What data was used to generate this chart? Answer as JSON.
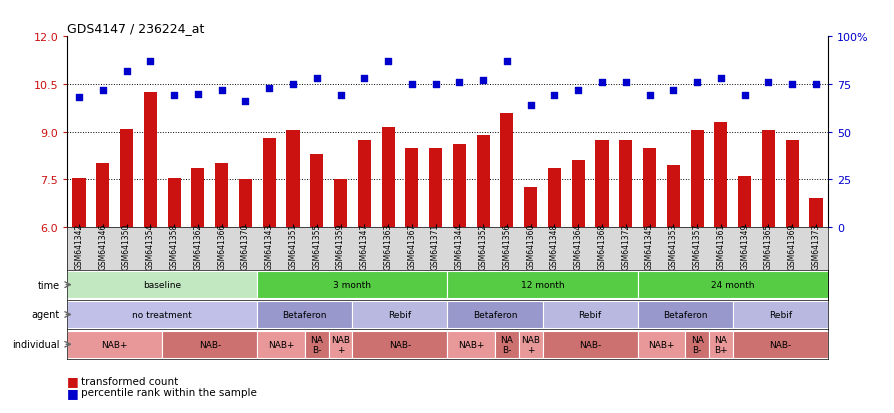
{
  "title": "GDS4147 / 236224_at",
  "samples": [
    "GSM641342",
    "GSM641346",
    "GSM641350",
    "GSM641354",
    "GSM641358",
    "GSM641362",
    "GSM641366",
    "GSM641370",
    "GSM641343",
    "GSM641351",
    "GSM641355",
    "GSM641359",
    "GSM641347",
    "GSM641363",
    "GSM641367",
    "GSM641371",
    "GSM641344",
    "GSM641352",
    "GSM641356",
    "GSM641360",
    "GSM641348",
    "GSM641364",
    "GSM641368",
    "GSM641372",
    "GSM641345",
    "GSM641353",
    "GSM641357",
    "GSM641361",
    "GSM641349",
    "GSM641365",
    "GSM641369",
    "GSM641373"
  ],
  "bar_values": [
    7.55,
    8.0,
    9.1,
    10.25,
    7.55,
    7.85,
    8.0,
    7.5,
    8.8,
    9.05,
    8.3,
    7.5,
    8.75,
    9.15,
    8.5,
    8.5,
    8.6,
    8.9,
    9.6,
    7.25,
    7.85,
    8.1,
    8.75,
    8.75,
    8.5,
    7.95,
    9.05,
    9.3,
    7.6,
    9.05,
    8.75,
    6.9
  ],
  "blue_values_pct": [
    68,
    72,
    82,
    87,
    69,
    70,
    72,
    66,
    73,
    75,
    78,
    69,
    78,
    87,
    75,
    75,
    76,
    77,
    87,
    64,
    69,
    72,
    76,
    76,
    69,
    72,
    76,
    78,
    69,
    76,
    75,
    75
  ],
  "ylim": [
    6,
    12
  ],
  "yticks_left": [
    6,
    7.5,
    9,
    10.5,
    12
  ],
  "yticks_right": [
    0,
    25,
    50,
    75,
    100
  ],
  "bar_color": "#cc1111",
  "blue_color": "#0000cc",
  "dotted_lines": [
    7.5,
    9.0,
    10.5
  ],
  "time_row": [
    {
      "label": "baseline",
      "start": 0,
      "end": 8,
      "color": "#c2e8c2"
    },
    {
      "label": "3 month",
      "start": 8,
      "end": 16,
      "color": "#55cc44"
    },
    {
      "label": "12 month",
      "start": 16,
      "end": 24,
      "color": "#55cc44"
    },
    {
      "label": "24 month",
      "start": 24,
      "end": 32,
      "color": "#55cc44"
    }
  ],
  "agent_row": [
    {
      "label": "no treatment",
      "start": 0,
      "end": 8,
      "color": "#c0c0e8"
    },
    {
      "label": "Betaferon",
      "start": 8,
      "end": 12,
      "color": "#9898cc"
    },
    {
      "label": "Rebif",
      "start": 12,
      "end": 16,
      "color": "#b8b8e0"
    },
    {
      "label": "Betaferon",
      "start": 16,
      "end": 20,
      "color": "#9898cc"
    },
    {
      "label": "Rebif",
      "start": 20,
      "end": 24,
      "color": "#b8b8e0"
    },
    {
      "label": "Betaferon",
      "start": 24,
      "end": 28,
      "color": "#9898cc"
    },
    {
      "label": "Rebif",
      "start": 28,
      "end": 32,
      "color": "#b8b8e0"
    }
  ],
  "individual_row": [
    {
      "label": "NAB+",
      "start": 0,
      "end": 4,
      "color": "#e89898"
    },
    {
      "label": "NAB-",
      "start": 4,
      "end": 8,
      "color": "#cc7070"
    },
    {
      "label": "NAB+",
      "start": 8,
      "end": 10,
      "color": "#e89898"
    },
    {
      "label": "NA\nB-",
      "start": 10,
      "end": 11,
      "color": "#cc7070"
    },
    {
      "label": "NAB\n+",
      "start": 11,
      "end": 12,
      "color": "#e89898"
    },
    {
      "label": "NAB-",
      "start": 12,
      "end": 16,
      "color": "#cc7070"
    },
    {
      "label": "NAB+",
      "start": 16,
      "end": 18,
      "color": "#e89898"
    },
    {
      "label": "NA\nB-",
      "start": 18,
      "end": 19,
      "color": "#cc7070"
    },
    {
      "label": "NAB\n+",
      "start": 19,
      "end": 20,
      "color": "#e89898"
    },
    {
      "label": "NAB-",
      "start": 20,
      "end": 24,
      "color": "#cc7070"
    },
    {
      "label": "NAB+",
      "start": 24,
      "end": 26,
      "color": "#e89898"
    },
    {
      "label": "NA\nB-",
      "start": 26,
      "end": 27,
      "color": "#cc7070"
    },
    {
      "label": "NA\nB+",
      "start": 27,
      "end": 28,
      "color": "#e89898"
    },
    {
      "label": "NAB-",
      "start": 28,
      "end": 32,
      "color": "#cc7070"
    }
  ],
  "legend_bar_label": "transformed count",
  "legend_blue_label": "percentile rank within the sample",
  "bg_tick_color": "#d8d8d8",
  "xticklabel_fontsize": 5.5,
  "bar_width": 0.55
}
